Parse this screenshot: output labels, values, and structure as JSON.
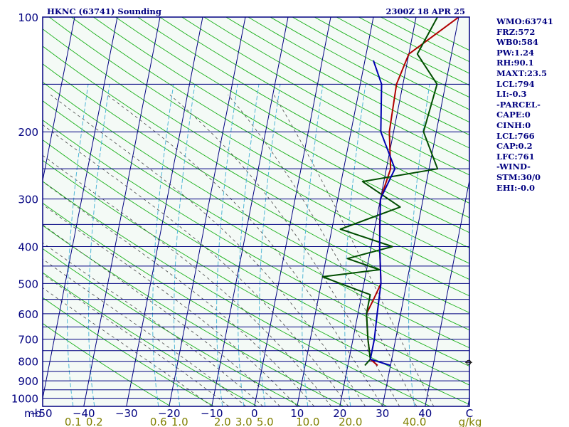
{
  "header": {
    "station": "HKNC (63741) Sounding",
    "time": "2300Z 18 APR 25"
  },
  "stats": [
    "WMO:63741",
    "FRZ:572",
    "WB0:584",
    "PW:1.24",
    "RH:90.1",
    "MAXT:23.5",
    "LCL:794",
    "LI:-0.3",
    "-PARCEL-",
    "CAPE:0",
    "CINH:0",
    "LCL:766",
    "CAP:0.2",
    "LFC:761",
    "-WIND-",
    "STM:30/0",
    "EHI:-0.0"
  ],
  "colors": {
    "background": "#f4faf6",
    "frame": "#000080",
    "isobar": "#000080",
    "isotherm": "#000080",
    "dry_adiabat": "#19b019",
    "moist_adiabat": "#444444",
    "mixing_ratio": "#4fb6d6",
    "temperature": "#b00000",
    "dewpoint": "#004d00",
    "parcel": "#0000b0",
    "pressure_labels": "#000080",
    "temperature_labels": "#000080",
    "mixing_ratio_labels": "#808000"
  },
  "chart_data": {
    "type": "line",
    "xlabel": "C",
    "ylabel": "mb",
    "xlim": [
      -50,
      50
    ],
    "ylim": [
      1050,
      100
    ],
    "y_scale": "log",
    "grid": true,
    "pressure_ticks": [
      100,
      200,
      300,
      400,
      500,
      600,
      700,
      800,
      900,
      1000
    ],
    "isobars": [
      100,
      150,
      200,
      250,
      300,
      350,
      400,
      450,
      500,
      550,
      600,
      650,
      700,
      750,
      800,
      850,
      900,
      950,
      1000
    ],
    "temperature_ticks": [
      -50,
      -40,
      -30,
      -20,
      -10,
      0,
      10,
      20,
      30,
      40
    ],
    "mixing_ratio_unit": "g/kg",
    "mixing_ratio_labels": [
      "0.1",
      "0.2",
      "0.6",
      "1.0",
      "2.0",
      "3.0",
      "5.0",
      "10.0",
      "20.0",
      "40.0"
    ],
    "mixing_ratio_label_x": [
      -42.5,
      -37.5,
      -22.5,
      -17.5,
      -7.5,
      -2.5,
      2.5,
      12.5,
      22.5,
      37.5
    ],
    "series": [
      {
        "key": "temperature",
        "points": [
          [
            27,
            820
          ],
          [
            25,
            790
          ],
          [
            23.5,
            700
          ],
          [
            22,
            600
          ],
          [
            23,
            550
          ],
          [
            24,
            500
          ],
          [
            22,
            400
          ],
          [
            21,
            350
          ],
          [
            20,
            300
          ],
          [
            21,
            250
          ],
          [
            19,
            200
          ],
          [
            18.5,
            150
          ],
          [
            20,
            125
          ],
          [
            30,
            100
          ]
        ]
      },
      {
        "key": "dewpoint",
        "points": [
          [
            24,
            820
          ],
          [
            25,
            790
          ],
          [
            23.5,
            700
          ],
          [
            22,
            600
          ],
          [
            22,
            535
          ],
          [
            10,
            480
          ],
          [
            23,
            460
          ],
          [
            15,
            430
          ],
          [
            25,
            400
          ],
          [
            12,
            360
          ],
          [
            25,
            315
          ],
          [
            15,
            270
          ],
          [
            32,
            250
          ],
          [
            27,
            200
          ],
          [
            28,
            150
          ],
          [
            22,
            125
          ],
          [
            25,
            100
          ]
        ]
      },
      {
        "key": "parcel",
        "points": [
          [
            30,
            820
          ],
          [
            25,
            790
          ],
          [
            25,
            700
          ],
          [
            24.5,
            600
          ],
          [
            24,
            500
          ],
          [
            22,
            400
          ],
          [
            20,
            300
          ],
          [
            22,
            250
          ],
          [
            17,
            200
          ],
          [
            15,
            150
          ],
          [
            12,
            130
          ]
        ]
      }
    ],
    "wind_marker": {
      "pressure": 805
    }
  }
}
